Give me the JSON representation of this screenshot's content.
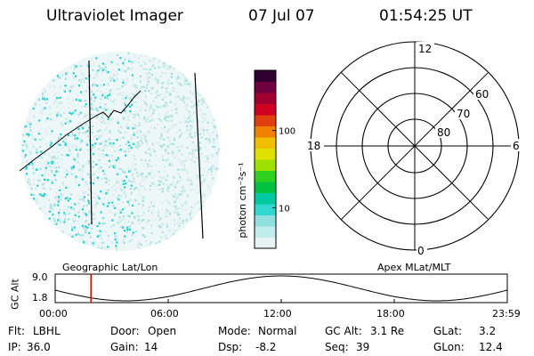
{
  "header": {
    "title": "Ultraviolet Imager",
    "date": "07 Jul 07",
    "time": "01:54:25 UT"
  },
  "colorbar": {
    "unit_label": "photon cm⁻²s⁻¹",
    "ticks": [
      {
        "value": 10,
        "label": "10"
      },
      {
        "value": 100,
        "label": "100"
      }
    ],
    "colors": [
      "#e8f4f4",
      "#c0ecec",
      "#90e0e0",
      "#30d8d0",
      "#00c8a0",
      "#00c040",
      "#30d020",
      "#a0e000",
      "#e0e000",
      "#f0c000",
      "#f08000",
      "#e04010",
      "#d00020",
      "#a00030",
      "#700040",
      "#300030"
    ]
  },
  "left_panel": {
    "label": "Geographic Lat/Lon",
    "point_color": "#20d0d0"
  },
  "right_panel": {
    "label": "Apex MLat/MLT",
    "mlt_labels": {
      "top": "12",
      "bottom": "0",
      "left": "18",
      "right": "6"
    },
    "mlat_labels": [
      "60",
      "70",
      "80"
    ]
  },
  "altitude_plot": {
    "ylabel": "GC Alt",
    "y_ticks": [
      "9.0",
      "1.8"
    ],
    "x_ticks": [
      "00:00",
      "06:00",
      "12:00",
      "18:00",
      "23:59"
    ],
    "current_time_marker": "01:54",
    "marker_color": "#e00000"
  },
  "footer": {
    "row1": [
      {
        "label": "Flt:",
        "value": "LBHL"
      },
      {
        "label": "Door:",
        "value": "Open"
      },
      {
        "label": "Mode:",
        "value": "Normal"
      },
      {
        "label": "GC Alt:",
        "value": "3.1 Re"
      },
      {
        "label": "GLat:",
        "value": "3.2"
      }
    ],
    "row2": [
      {
        "label": "IP:",
        "value": "36.0"
      },
      {
        "label": "Gain:",
        "value": "14"
      },
      {
        "label": "Dsp:",
        "value": "-8.2"
      },
      {
        "label": "Seq:",
        "value": "39"
      },
      {
        "label": "GLon:",
        "value": "12.4"
      }
    ]
  }
}
